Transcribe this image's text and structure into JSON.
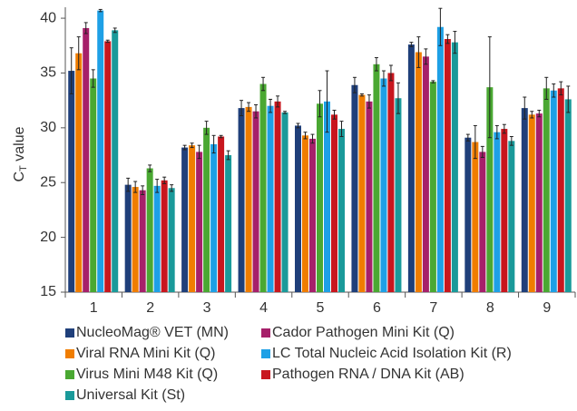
{
  "chart_data": {
    "type": "bar",
    "y_label": {
      "main": "C",
      "sub": "T",
      "rest": " value"
    },
    "categories": [
      "1",
      "2",
      "3",
      "4",
      "5",
      "6",
      "7",
      "8",
      "9"
    ],
    "ylim": [
      15,
      41
    ],
    "yticks": [
      15,
      20,
      25,
      30,
      35,
      40
    ],
    "series": [
      {
        "name": "NucleoMag® VET (MN)",
        "color": "#1f3f7a",
        "values": [
          35.2,
          24.8,
          28.2,
          31.8,
          30.2,
          33.9,
          37.6,
          29.1,
          31.8
        ],
        "errors": [
          2.1,
          0.6,
          0.2,
          0.7,
          0.2,
          0.7,
          0.2,
          0.3,
          1.0
        ]
      },
      {
        "name": "Viral RNA Mini Kit (Q)",
        "color": "#f07d00",
        "values": [
          36.8,
          24.6,
          28.4,
          31.9,
          29.3,
          33.0,
          36.9,
          28.7,
          31.2
        ],
        "errors": [
          1.5,
          0.5,
          0.2,
          0.4,
          0.3,
          0.1,
          1.4,
          1.5,
          0.3
        ]
      },
      {
        "name": "Cador Pathogen Mini Kit (Q)",
        "color": "#a6206a",
        "values": [
          39.1,
          24.3,
          27.8,
          31.5,
          29.0,
          32.4,
          36.5,
          27.8,
          31.3
        ],
        "errors": [
          0.5,
          0.4,
          0.6,
          0.6,
          0.4,
          0.6,
          0.7,
          0.5,
          0.3
        ]
      },
      {
        "name": "Virus Mini M48 Kit (Q)",
        "color": "#4aa832",
        "values": [
          34.5,
          26.3,
          30.0,
          34.0,
          32.2,
          35.8,
          34.2,
          33.7,
          33.6
        ],
        "errors": [
          0.8,
          0.3,
          0.6,
          0.6,
          1.2,
          0.6,
          0.1,
          4.6,
          1.0
        ]
      },
      {
        "name": "LC Total Nucleic Acid Isolation Kit (R)",
        "color": "#1ea0e6",
        "values": [
          40.7,
          24.7,
          28.5,
          32.0,
          32.4,
          34.5,
          39.2,
          29.6,
          33.4
        ],
        "errors": [
          0.1,
          0.6,
          0.8,
          0.6,
          2.8,
          0.7,
          1.7,
          0.6,
          0.6
        ]
      },
      {
        "name": "Pathogen RNA / DNA Kit (AB)",
        "color": "#c8161e",
        "values": [
          37.9,
          25.2,
          29.2,
          32.4,
          31.2,
          35.0,
          38.1,
          29.9,
          33.6
        ],
        "errors": [
          0.1,
          0.3,
          0.1,
          0.5,
          0.4,
          0.7,
          0.4,
          0.4,
          0.6
        ]
      },
      {
        "name": "Universal Kit (St)",
        "color": "#1a9a9a",
        "values": [
          38.9,
          24.5,
          27.5,
          31.4,
          29.9,
          32.7,
          37.8,
          28.8,
          32.6
        ],
        "errors": [
          0.2,
          0.3,
          0.4,
          0.1,
          0.7,
          1.4,
          1.0,
          0.4,
          1.2
        ]
      }
    ]
  }
}
